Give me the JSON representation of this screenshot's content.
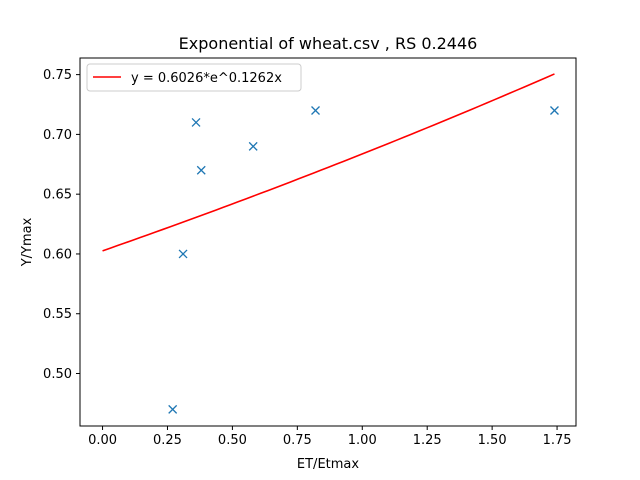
{
  "chart_data": {
    "type": "scatter",
    "title": "Exponential of wheat.csv , RS 0.2446",
    "xlabel": "ET/Etmax",
    "ylabel": "Y/Ymax",
    "xlim": [
      -0.0868,
      1.8229
    ],
    "ylim": [
      0.4561,
      0.7639
    ],
    "xticks": [
      0.0,
      0.25,
      0.5,
      0.75,
      1.0,
      1.25,
      1.5,
      1.75
    ],
    "xtick_labels": [
      "0.00",
      "0.25",
      "0.50",
      "0.75",
      "1.00",
      "1.25",
      "1.50",
      "1.75"
    ],
    "yticks": [
      0.5,
      0.55,
      0.6,
      0.65,
      0.7,
      0.75
    ],
    "ytick_labels": [
      "0.50",
      "0.55",
      "0.60",
      "0.65",
      "0.70",
      "0.75"
    ],
    "grid": false,
    "legend_position": "top-left",
    "series": [
      {
        "kind": "scatter",
        "marker": "x",
        "color": "#1f77b4",
        "points": [
          {
            "x": 0.27,
            "y": 0.47
          },
          {
            "x": 0.31,
            "y": 0.6
          },
          {
            "x": 0.36,
            "y": 0.71
          },
          {
            "x": 0.38,
            "y": 0.67
          },
          {
            "x": 0.58,
            "y": 0.69
          },
          {
            "x": 0.82,
            "y": 0.72
          },
          {
            "x": 1.74,
            "y": 0.72
          }
        ]
      },
      {
        "kind": "line",
        "name": "y = 0.6026*e^0.1262x",
        "color": "#ff0000",
        "model": {
          "a": 0.6026,
          "b": 0.1262
        },
        "x_range": [
          0.0,
          1.74
        ]
      }
    ]
  }
}
